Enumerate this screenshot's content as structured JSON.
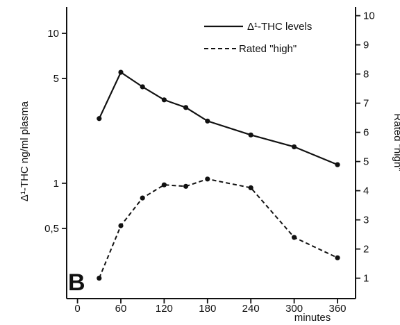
{
  "chart_data": {
    "type": "line",
    "panel_label": "B",
    "xlabel": "minutes",
    "x_ticks": [
      0,
      60,
      120,
      180,
      240,
      300,
      360
    ],
    "xlim": [
      -15,
      385
    ],
    "y_left": {
      "label": "Δ¹-THC ng/ml plasma",
      "scale": "log",
      "range": [
        0.17,
        15
      ],
      "ticks": [
        {
          "value": 0.5,
          "label": "0,5"
        },
        {
          "value": 1,
          "label": "1"
        },
        {
          "value": 5,
          "label": "5"
        },
        {
          "value": 10,
          "label": "10"
        }
      ]
    },
    "y_right": {
      "label": "Rated \"high\"",
      "scale": "linear",
      "range": [
        0.3,
        10.3
      ],
      "ticks": [
        1,
        2,
        3,
        4,
        5,
        6,
        7,
        8,
        9,
        10
      ]
    },
    "legend": {
      "position": "top-right",
      "entries": [
        {
          "label": "Δ¹-THC levels",
          "style": "solid"
        },
        {
          "label": "Rated \"high\"",
          "style": "dashed"
        }
      ]
    },
    "series": [
      {
        "name": "Δ¹-THC levels",
        "axis": "left",
        "style": "solid",
        "x": [
          30,
          60,
          90,
          120,
          150,
          180,
          240,
          300,
          360
        ],
        "y": [
          2.7,
          5.5,
          4.4,
          3.6,
          3.2,
          2.6,
          2.1,
          1.75,
          1.33
        ]
      },
      {
        "name": "Rated \"high\"",
        "axis": "right",
        "style": "dashed",
        "x": [
          30,
          60,
          90,
          120,
          150,
          180,
          240,
          300,
          360
        ],
        "y": [
          1.0,
          2.8,
          3.75,
          4.2,
          4.15,
          4.4,
          4.1,
          2.4,
          1.7
        ]
      }
    ]
  }
}
